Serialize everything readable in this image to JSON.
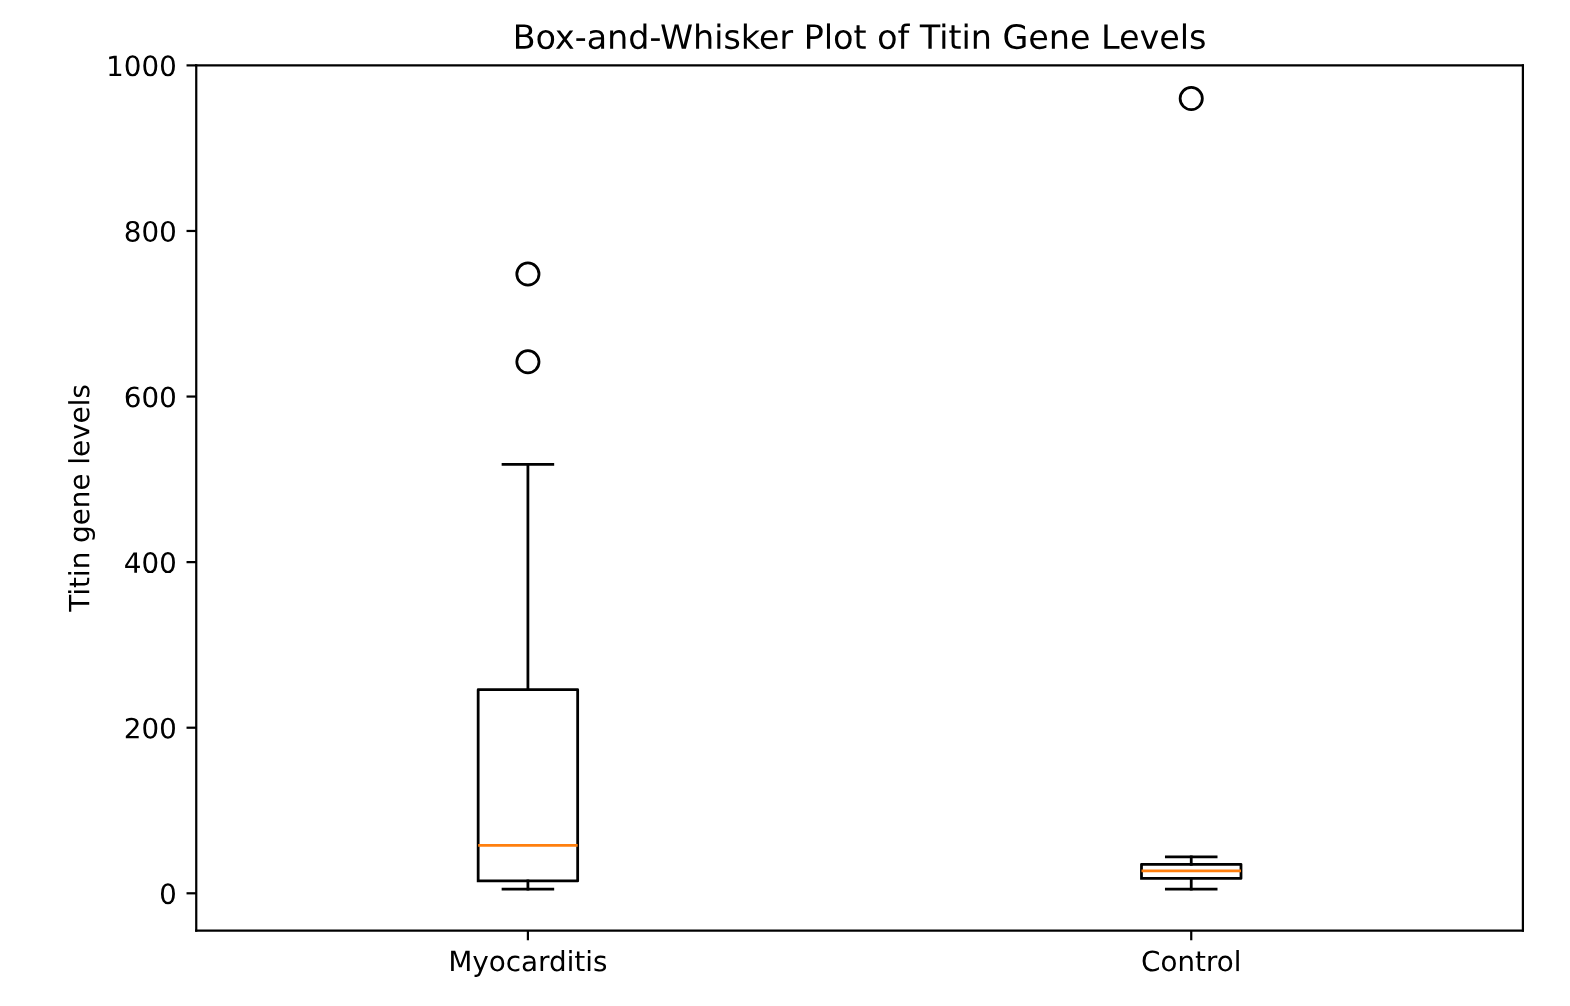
{
  "chart_data": {
    "type": "box",
    "title": "Box-and-Whisker Plot of Titin Gene Levels",
    "ylabel": "Titin gene levels",
    "categories": [
      "Myocarditis",
      "Control"
    ],
    "boxes": [
      {
        "low": 5,
        "q1": 15,
        "median": 58,
        "q3": 246,
        "high": 518,
        "outliers": [
          642,
          748
        ]
      },
      {
        "low": 5,
        "q1": 18,
        "median": 27,
        "q3": 35,
        "high": 44,
        "outliers": [
          960
        ]
      }
    ],
    "ylim": [
      -45,
      1000
    ],
    "yticks": [
      0,
      200,
      400,
      600,
      800,
      1000
    ],
    "grid": false
  }
}
